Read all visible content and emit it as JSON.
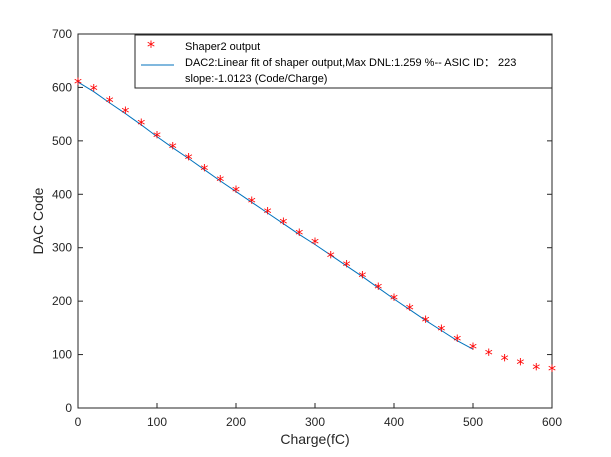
{
  "chart_data": {
    "type": "line",
    "x_axis": {
      "label": "Charge(fC)",
      "range": [
        0,
        600
      ],
      "ticks": [
        0,
        100,
        200,
        300,
        400,
        500,
        600
      ]
    },
    "y_axis": {
      "label": "DAC Code",
      "range": [
        0,
        700
      ],
      "ticks": [
        0,
        100,
        200,
        300,
        400,
        500,
        600,
        700
      ]
    },
    "grid": false,
    "legend": {
      "placement": "top",
      "entries": [
        {
          "key": "scatter",
          "text": "Shaper2 output"
        },
        {
          "key": "fit",
          "text": "DAC2:Linear fit of shaper output,Max DNL:1.259 %-- ASIC ID： 223"
        },
        {
          "key": "slope",
          "text": "slope:-1.0123 (Code/Charge)"
        }
      ]
    },
    "series": [
      {
        "name": "Shaper2 output",
        "kind": "scatter",
        "marker": "*",
        "color": "#ff0000",
        "x": [
          0,
          20,
          40,
          60,
          80,
          100,
          120,
          140,
          160,
          180,
          200,
          220,
          240,
          260,
          280,
          300,
          320,
          340,
          360,
          380,
          400,
          420,
          440,
          460,
          480,
          500,
          520,
          540,
          560,
          580,
          600
        ],
        "y": [
          607,
          595,
          573,
          553,
          531,
          507,
          487,
          466,
          445,
          425,
          405,
          385,
          365,
          345,
          325,
          308,
          283,
          266,
          245,
          224,
          203,
          184,
          162,
          145,
          126,
          111,
          100,
          90,
          82,
          73,
          70
        ]
      },
      {
        "name": "DAC2:Linear fit of shaper output,Max DNL:1.259 %-- ASIC ID： 223",
        "kind": "line",
        "color": "#0072bd",
        "x": [
          0,
          20,
          40,
          60,
          80,
          100,
          120,
          140,
          160,
          180,
          200,
          220,
          240,
          260,
          280,
          300,
          320,
          340,
          360,
          380,
          400,
          420,
          440,
          460,
          480,
          500
        ],
        "y": [
          610,
          592,
          571,
          551,
          530,
          508,
          487,
          467,
          446,
          425,
          405,
          385,
          365,
          345,
          325,
          306,
          286,
          266,
          246,
          225,
          204,
          184,
          164,
          145,
          126,
          110
        ]
      }
    ]
  }
}
